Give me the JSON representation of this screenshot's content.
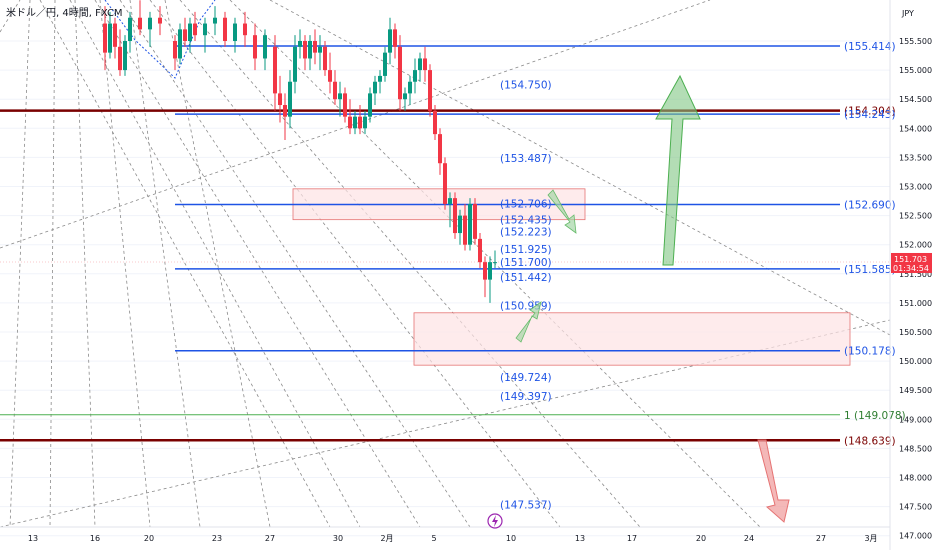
{
  "title": "米ドル／円, 4時間, FXCM",
  "currency": "JPY",
  "colors": {
    "up": "#089981",
    "down": "#f23645",
    "blue_line": "#1e53e5",
    "dark_red_line": "#7a0000",
    "green_line": "#4caf50",
    "zone_fill": "#fde2e4",
    "zone_stroke": "#e57373",
    "label_blue": "#1e53e5",
    "grid": "#f0f3fa"
  },
  "current_price": {
    "value": "151.703",
    "countdown": "01:34:54"
  },
  "chart_data": {
    "type": "candlestick",
    "ylim": [
      146.8,
      156.0
    ],
    "y_ticks": [
      "155.500",
      "155.000",
      "154.500",
      "154.000",
      "153.500",
      "153.000",
      "152.500",
      "152.000",
      "151.500",
      "151.000",
      "150.500",
      "150.000",
      "149.500",
      "149.000",
      "148.500",
      "148.000",
      "147.500",
      "147.000"
    ],
    "x_ticks": [
      "13",
      "16",
      "20",
      "23",
      "27",
      "30",
      "2月",
      "5",
      "10",
      "13",
      "17",
      "20",
      "24",
      "27",
      "3月"
    ],
    "horizontal_levels": [
      {
        "price": 155.414,
        "label": "(155.414)",
        "style": "blue",
        "axis_label": true
      },
      {
        "price": 154.304,
        "label": "(154.304)",
        "style": "dark_red",
        "axis_label": true
      },
      {
        "price": 154.243,
        "label": "(154.243)",
        "style": "blue",
        "axis_label": true
      },
      {
        "price": 152.69,
        "label": "(152.690)",
        "style": "blue",
        "axis_label": true
      },
      {
        "price": 151.585,
        "label": "(151.585)",
        "style": "blue",
        "axis_label": true
      },
      {
        "price": 150.178,
        "label": "(150.178)",
        "style": "blue",
        "axis_label": true
      },
      {
        "price": 149.078,
        "label": "1 (149.078)",
        "style": "green",
        "axis_label": true
      },
      {
        "price": 148.639,
        "label": "(148.639)",
        "style": "dark_red",
        "axis_label": true
      }
    ],
    "fib_labels": [
      "(154.750)",
      "(153.487)",
      "(152.706)",
      "(152.435)",
      "(152.223)",
      "(151.925)",
      "(151.700)",
      "(151.442)",
      "(150.959)",
      "(149.724)",
      "(149.397)",
      "(147.537)"
    ],
    "fib_label_prices": [
      154.75,
      153.487,
      152.706,
      152.435,
      152.223,
      151.925,
      151.7,
      151.442,
      150.959,
      149.724,
      149.397,
      147.537
    ],
    "zones": [
      {
        "from_price": 152.96,
        "to_price": 152.43
      },
      {
        "from_price": 150.83,
        "to_price": 149.93
      }
    ],
    "arrows": [
      {
        "direction": "up",
        "color": "green",
        "from_price": 151.6,
        "to_price": 154.9
      },
      {
        "direction": "down",
        "color": "red",
        "from_price": 148.4,
        "to_price": 147.0
      },
      {
        "direction": "down-right",
        "color": "green-small",
        "from_price": 152.7,
        "to_price": 152.1
      },
      {
        "direction": "up-right",
        "color": "green-small",
        "from_price": 150.3,
        "to_price": 150.9
      }
    ]
  }
}
